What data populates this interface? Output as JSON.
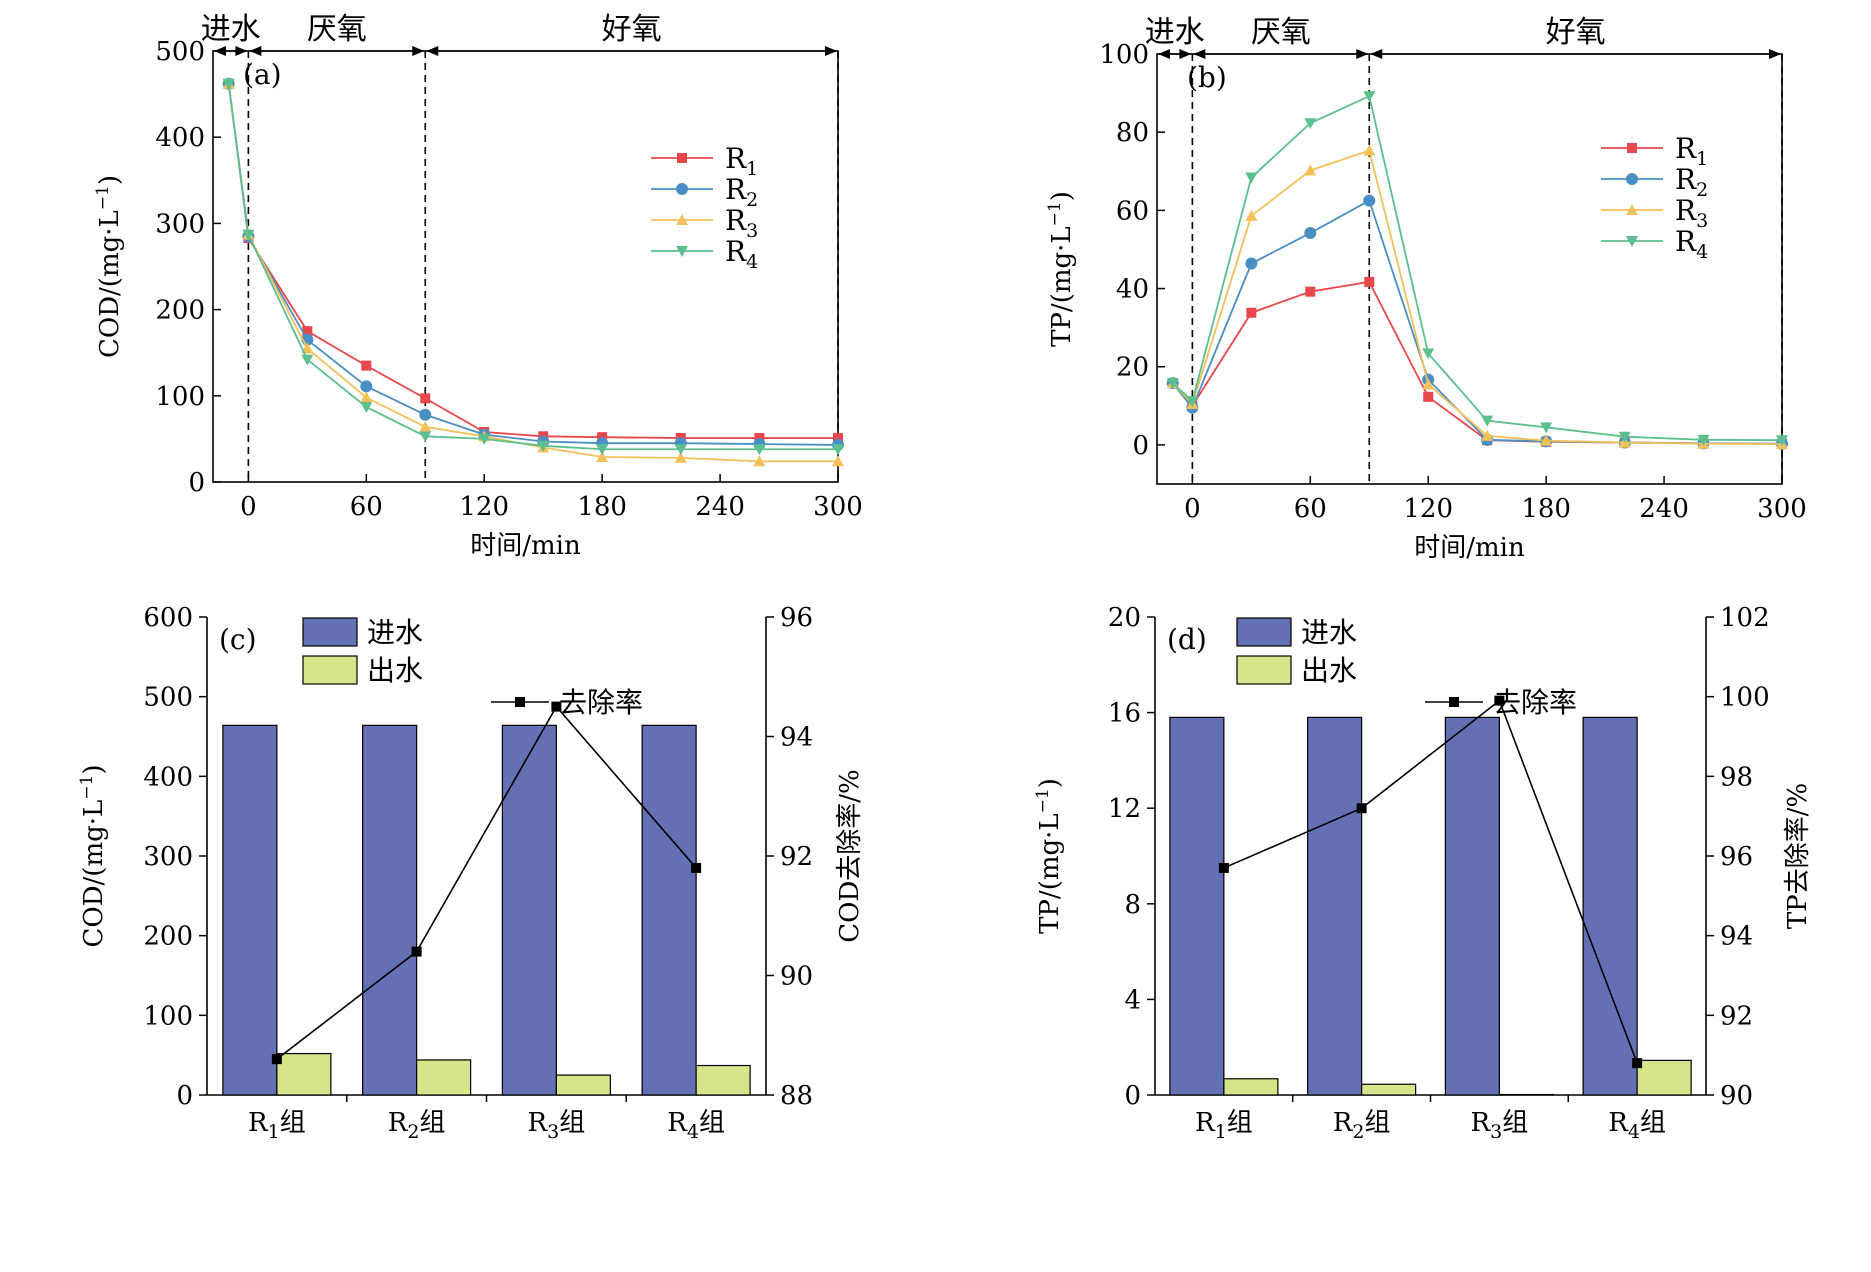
{
  "chart_data": [
    {
      "id": "a",
      "type": "line",
      "panel_label": "(a)",
      "xlabel": "时间/min",
      "ylabel": "COD/(mg·L",
      "ylabel_sup": "−1",
      "ylabel_close": ")",
      "xlim": [
        -18,
        300
      ],
      "ylim": [
        0,
        500
      ],
      "xticks": [
        0,
        60,
        120,
        180,
        240,
        300
      ],
      "yticks": [
        0,
        100,
        200,
        300,
        400,
        500
      ],
      "phases": [
        {
          "label": "进水",
          "from": -18,
          "to": 0
        },
        {
          "label": "厌氧",
          "from": 0,
          "to": 90
        },
        {
          "label": "好氧",
          "from": 90,
          "to": 300
        }
      ],
      "boundaries": [
        0,
        90,
        300
      ],
      "x": [
        -10,
        0,
        30,
        60,
        90,
        120,
        150,
        180,
        220,
        260,
        300
      ],
      "series": [
        {
          "name": "R",
          "sub": "1",
          "color": "#e8474b",
          "marker": "square",
          "values": [
            462,
            283,
            175,
            135,
            97,
            58,
            53,
            52,
            51,
            51,
            51
          ]
        },
        {
          "name": "R",
          "sub": "2",
          "color": "#4a8fc4",
          "marker": "circle",
          "values": [
            462,
            285,
            165,
            111,
            78,
            55,
            47,
            45,
            45,
            44,
            43
          ]
        },
        {
          "name": "R",
          "sub": "3",
          "color": "#f3c15a",
          "marker": "triangle-up",
          "values": [
            462,
            287,
            155,
            98,
            64,
            53,
            40,
            29,
            28,
            24,
            24
          ]
        },
        {
          "name": "R",
          "sub": "4",
          "color": "#5cbf8e",
          "marker": "triangle-down",
          "values": [
            462,
            287,
            142,
            87,
            53,
            50,
            42,
            38,
            38,
            38,
            38
          ]
        }
      ],
      "legend": "right"
    },
    {
      "id": "b",
      "type": "line",
      "panel_label": "(b)",
      "xlabel": "时间/min",
      "ylabel": "TP/(mg·L",
      "ylabel_sup": "−1",
      "ylabel_close": ")",
      "xlim": [
        -18,
        300
      ],
      "ylim": [
        -10,
        100
      ],
      "xticks": [
        0,
        60,
        120,
        180,
        240,
        300
      ],
      "yticks": [
        0,
        20,
        40,
        60,
        80,
        100
      ],
      "phases": [
        {
          "label": "进水",
          "from": -18,
          "to": 0
        },
        {
          "label": "厌氧",
          "from": 0,
          "to": 90
        },
        {
          "label": "好氧",
          "from": 90,
          "to": 300
        }
      ],
      "boundaries": [
        0,
        90,
        300
      ],
      "x": [
        -10,
        0,
        30,
        60,
        90,
        120,
        150,
        180,
        220,
        260,
        300
      ],
      "series": [
        {
          "name": "R",
          "sub": "1",
          "color": "#e8474b",
          "marker": "square",
          "values": [
            15.8,
            10,
            33.8,
            39.2,
            41.7,
            12.3,
            1.2,
            0.8,
            0.6,
            0.4,
            0.3
          ]
        },
        {
          "name": "R",
          "sub": "2",
          "color": "#4a8fc4",
          "marker": "circle",
          "values": [
            15.8,
            9.5,
            46.4,
            54.2,
            62.5,
            16.7,
            1.3,
            0.9,
            0.6,
            0.4,
            0.3
          ]
        },
        {
          "name": "R",
          "sub": "3",
          "color": "#f3c15a",
          "marker": "triangle-up",
          "values": [
            15.8,
            10.5,
            58.6,
            70.2,
            75.3,
            15.5,
            2.3,
            1.1,
            0.6,
            0.3,
            0.2
          ]
        },
        {
          "name": "R",
          "sub": "4",
          "color": "#5cbf8e",
          "marker": "triangle-down",
          "values": [
            15.8,
            11.2,
            68.4,
            82.3,
            89.2,
            23.4,
            6.2,
            4.5,
            2.1,
            1.3,
            1.2
          ]
        }
      ],
      "legend": "right"
    },
    {
      "id": "c",
      "type": "bar",
      "panel_label": "(c)",
      "ylabel": "COD/(mg·L",
      "ylabel_sup": "−1",
      "ylabel_close": ")",
      "y2label": "COD去除率/%",
      "ylim": [
        0,
        600
      ],
      "y2lim": [
        88,
        96
      ],
      "yticks": [
        0,
        100,
        200,
        300,
        400,
        500,
        600
      ],
      "y2ticks": [
        88,
        90,
        92,
        94,
        96
      ],
      "categories": [
        {
          "main": "R",
          "sub": "1",
          "suffix": "组"
        },
        {
          "main": "R",
          "sub": "2",
          "suffix": "组"
        },
        {
          "main": "R",
          "sub": "3",
          "suffix": "组"
        },
        {
          "main": "R",
          "sub": "4",
          "suffix": "组"
        }
      ],
      "series": [
        {
          "name": "进水",
          "color": "#6370b4",
          "values": [
            464,
            464,
            464,
            464
          ]
        },
        {
          "name": "出水",
          "color": "#d6e58a",
          "values": [
            52,
            44,
            25,
            37
          ]
        }
      ],
      "line_series": {
        "name": "去除率",
        "color": "#000000",
        "values": [
          88.6,
          90.4,
          94.5,
          91.8
        ]
      },
      "legend": "top"
    },
    {
      "id": "d",
      "type": "bar",
      "panel_label": "(d)",
      "ylabel": "TP/(mg·L",
      "ylabel_sup": "−1",
      "ylabel_close": ")",
      "y2label": "TP去除率/%",
      "ylim": [
        0,
        20
      ],
      "y2lim": [
        90,
        102
      ],
      "yticks": [
        0,
        4,
        8,
        12,
        16,
        20
      ],
      "y2ticks": [
        90,
        92,
        94,
        96,
        98,
        100,
        102
      ],
      "categories": [
        {
          "main": "R",
          "sub": "1",
          "suffix": "组"
        },
        {
          "main": "R",
          "sub": "2",
          "suffix": "组"
        },
        {
          "main": "R",
          "sub": "3",
          "suffix": "组"
        },
        {
          "main": "R",
          "sub": "4",
          "suffix": "组"
        }
      ],
      "series": [
        {
          "name": "进水",
          "color": "#6370b4",
          "values": [
            15.8,
            15.8,
            15.8,
            15.8
          ]
        },
        {
          "name": "出水",
          "color": "#d6e58a",
          "values": [
            0.68,
            0.45,
            0.02,
            1.45
          ]
        }
      ],
      "line_series": {
        "name": "去除率",
        "color": "#000000",
        "values": [
          95.7,
          97.2,
          99.9,
          90.8
        ]
      },
      "legend": "top"
    }
  ]
}
